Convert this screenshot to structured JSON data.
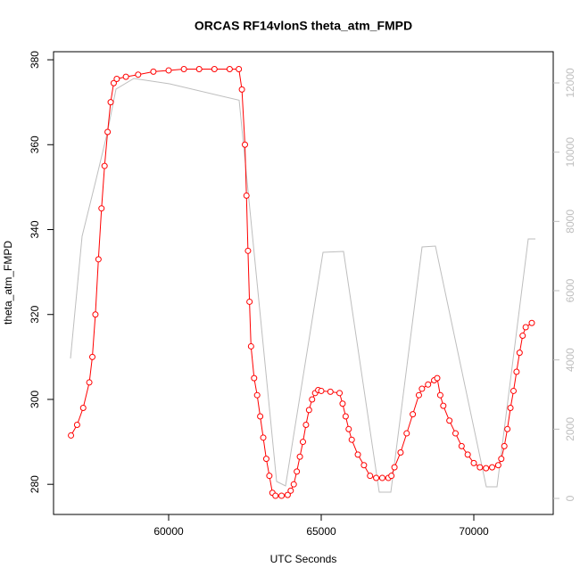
{
  "chart_data": {
    "type": "line",
    "title": "ORCAS RF14vlonS theta_atm_FMPD",
    "xlabel": "UTC Seconds",
    "ylabel": "theta_atm_FMPD",
    "xlim": [
      56228,
      72602
    ],
    "xticks": [
      60000,
      65000,
      70000
    ],
    "ylim": [
      272.9,
      381.9
    ],
    "yticks": [
      280,
      300,
      320,
      340,
      360,
      380
    ],
    "y2lim": [
      -463,
      12901
    ],
    "y2ticks": [
      0,
      2000,
      4000,
      6000,
      8000,
      10000,
      12000
    ],
    "series": [
      {
        "color": "#ff0000",
        "markers": true,
        "x": [
          56800,
          57000,
          57200,
          57400,
          57500,
          57600,
          57700,
          57800,
          57900,
          58000,
          58100,
          58200,
          58300,
          58600,
          59000,
          59500,
          60000,
          60500,
          61000,
          61500,
          62000,
          62300,
          62400,
          62500,
          62550,
          62600,
          62650,
          62700,
          62800,
          62900,
          63000,
          63100,
          63200,
          63300,
          63400,
          63500,
          63700,
          63900,
          64000,
          64100,
          64200,
          64300,
          64400,
          64500,
          64600,
          64700,
          64800,
          64900,
          65000,
          65300,
          65600,
          65700,
          65800,
          65900,
          66000,
          66200,
          66400,
          66600,
          66800,
          67000,
          67200,
          67300,
          67400,
          67600,
          67800,
          68000,
          68200,
          68300,
          68500,
          68700,
          68800,
          68900,
          69000,
          69200,
          69400,
          69600,
          69800,
          70000,
          70200,
          70400,
          70600,
          70800,
          70900,
          71000,
          71100,
          71200,
          71300,
          71400,
          71500,
          71600,
          71700,
          71900
        ],
        "values": [
          291.5,
          294,
          298,
          304,
          310,
          320,
          333,
          345,
          355,
          363,
          370,
          374.5,
          375.5,
          376,
          376.5,
          377.2,
          377.5,
          377.8,
          377.8,
          377.8,
          377.8,
          377.8,
          373,
          360,
          348,
          335,
          323,
          312.5,
          305,
          301,
          296,
          291,
          286,
          282,
          278,
          277.3,
          277.3,
          277.5,
          278.5,
          280,
          283,
          286.5,
          290,
          294,
          297.5,
          300,
          301.5,
          302.2,
          302,
          301.8,
          301.5,
          299,
          296,
          293,
          290.5,
          287,
          284.5,
          282,
          281.5,
          281.5,
          281.5,
          282,
          284,
          287.5,
          292,
          296.5,
          301,
          302.5,
          303.5,
          304.5,
          305,
          301,
          298.5,
          295,
          292,
          289,
          287,
          285,
          284,
          283.8,
          284,
          284.5,
          286,
          289,
          293,
          298,
          302,
          306.5,
          311,
          315,
          317,
          318
        ]
      },
      {
        "color": "#bebebe",
        "axis": "y2",
        "x": [
          56784,
          57164,
          57631,
          57982,
          58275,
          58860,
          60029,
          62310,
          63538,
          63830,
          65058,
          65730,
          66900,
          67280,
          68304,
          68742,
          70409,
          70760,
          71784,
          72018
        ],
        "values": [
          4040,
          7570,
          9244,
          10532,
          11819,
          12128,
          11974,
          11500,
          489,
          360,
          7107,
          7133,
          180,
          180,
          7262,
          7287,
          335,
          335,
          7493,
          7493
        ]
      }
    ]
  }
}
